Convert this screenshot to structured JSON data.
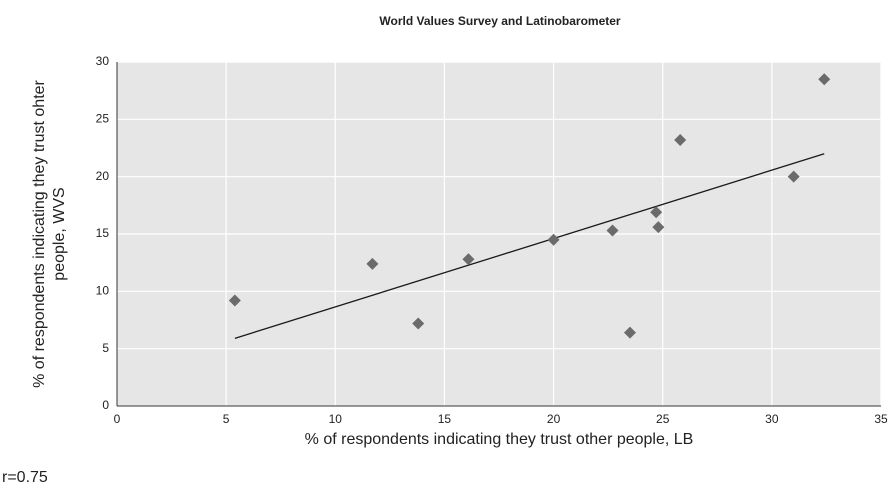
{
  "chart_data": {
    "type": "scatter",
    "title": "World  Values Survey and Latinobarometer",
    "xlabel": "% of respondents indicating they trust other people, LB",
    "ylabel": [
      "% of respondents indicating they trust ohter",
      "people, WVS"
    ],
    "annotation": "r=0.75",
    "x": [
      5.4,
      11.7,
      13.8,
      16.1,
      20.0,
      22.7,
      23.5,
      24.7,
      24.8,
      25.8,
      31.0,
      32.4
    ],
    "values": [
      9.2,
      12.4,
      7.2,
      12.8,
      14.5,
      15.3,
      6.4,
      16.9,
      15.6,
      23.2,
      20.0,
      28.5
    ],
    "color": "#6b6b6b",
    "trend_line": {
      "x": [
        5.4,
        32.4
      ],
      "y": [
        5.9,
        22.0
      ],
      "color": "#1a1a1a"
    },
    "xlim": [
      0,
      35
    ],
    "xticks": [
      0,
      5,
      10,
      15,
      20,
      25,
      30,
      35
    ],
    "ylim": [
      0,
      30
    ],
    "yticks": [
      0,
      5,
      10,
      15,
      20,
      25,
      30
    ],
    "grid": true
  }
}
